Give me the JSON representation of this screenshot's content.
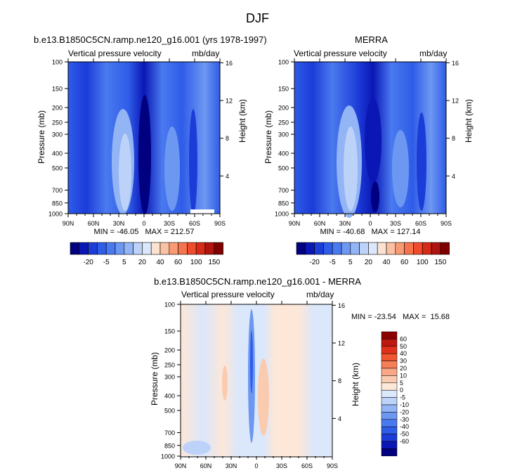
{
  "figure_title": "DJF",
  "colors": {
    "blue_palette": [
      "#000080",
      "#0a17b4",
      "#1c3cd8",
      "#2f5ce8",
      "#4a7af0",
      "#6d98f2",
      "#93b4f5",
      "#bcd2f8",
      "#dbe7fb"
    ],
    "red_palette": [
      "#fde2d2",
      "#fbc1a3",
      "#f99a74",
      "#f5744e",
      "#ee4c2c",
      "#d72a17",
      "#b0140e",
      "#800000"
    ],
    "diff_blue": [
      "#000080",
      "#0a17b4",
      "#1c3cd8",
      "#2f5ce8",
      "#4a7af0",
      "#6d98f2",
      "#93b4f5",
      "#bcd2f8",
      "#dbe7fb"
    ],
    "diff_red": [
      "#fde7d8",
      "#fbcbb0",
      "#f9a784",
      "#f77f58",
      "#f15633",
      "#e0301b",
      "#bd1710",
      "#8b0000"
    ]
  },
  "chart_data": [
    {
      "type": "heatmap",
      "title": "b.e13.B1850C5CN.ramp.ne120_g16.001 (yrs 1978-1997)",
      "subtitle_left": "Vertical pressure velocity",
      "subtitle_right": "mb/day",
      "ylabel": "Pressure (mb)",
      "ylabel_right": "Height (km)",
      "x_ticks": [
        "90N",
        "60N",
        "30N",
        "0",
        "30S",
        "60S",
        "90S"
      ],
      "y_ticks": [
        "100",
        "150",
        "200",
        "250",
        "300",
        "400",
        "500",
        "700",
        "850",
        "1000"
      ],
      "y_ticks_right": [
        "16",
        "12",
        "8",
        "4"
      ],
      "ylim": [
        1000,
        100
      ],
      "y_scale": "log",
      "stats": "MIN = -46.05   MAX = 212.57",
      "legend": {
        "orientation": "horizontal",
        "labels": [
          "-20",
          "-5",
          "5",
          "20",
          "40",
          "60",
          "100",
          "150"
        ]
      }
    },
    {
      "type": "heatmap",
      "title": "MERRA",
      "subtitle_left": "Vertical pressure velocity",
      "subtitle_right": "mb/day",
      "ylabel": "Pressure (mb)",
      "ylabel_right": "Height (km)",
      "x_ticks": [
        "90N",
        "60N",
        "30N",
        "0",
        "30S",
        "60S",
        "90S"
      ],
      "y_ticks": [
        "100",
        "150",
        "200",
        "250",
        "300",
        "400",
        "500",
        "700",
        "850",
        "1000"
      ],
      "y_ticks_right": [
        "16",
        "12",
        "8",
        "4"
      ],
      "ylim": [
        1000,
        100
      ],
      "y_scale": "log",
      "stats": "MIN = -40.68   MAX = 127.14",
      "legend": {
        "orientation": "horizontal",
        "labels": [
          "-20",
          "-5",
          "5",
          "20",
          "40",
          "60",
          "100",
          "150"
        ]
      }
    },
    {
      "type": "heatmap",
      "title": "b.e13.B1850C5CN.ramp.ne120_g16.001 - MERRA",
      "subtitle_left": "Vertical pressure velocity",
      "subtitle_right": "mb/day",
      "ylabel": "Pressure (mb)",
      "ylabel_right": "Height (km)",
      "x_ticks": [
        "90N",
        "60N",
        "30N",
        "0",
        "30S",
        "60S",
        "90S"
      ],
      "y_ticks": [
        "100",
        "150",
        "200",
        "250",
        "300",
        "400",
        "500",
        "700",
        "850",
        "1000"
      ],
      "y_ticks_right": [
        "16",
        "12",
        "8",
        "4"
      ],
      "ylim": [
        1000,
        100
      ],
      "y_scale": "log",
      "stats": "MIN = -23.54   MAX =  15.68",
      "legend": {
        "orientation": "vertical",
        "labels": [
          "60",
          "50",
          "40",
          "30",
          "20",
          "10",
          "5",
          "0",
          "-5",
          "-10",
          "-20",
          "-30",
          "-40",
          "-50",
          "-60"
        ]
      }
    }
  ]
}
